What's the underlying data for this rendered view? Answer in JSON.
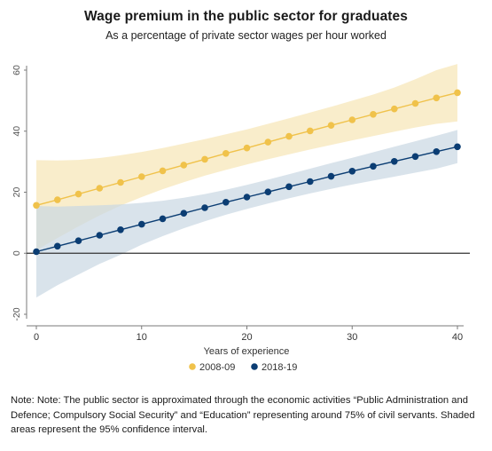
{
  "chart_data": {
    "type": "line",
    "title": "Wage premium in the public sector for graduates",
    "subtitle": "As a percentage of private sector wages per hour worked",
    "xlabel": "Years of experience",
    "ylabel": "",
    "xlim": [
      0,
      40
    ],
    "ylim": [
      -20,
      60
    ],
    "x_ticks": [
      0,
      10,
      20,
      30,
      40
    ],
    "y_ticks": [
      -20,
      0,
      20,
      40,
      60
    ],
    "grid": false,
    "legend_position": "bottom",
    "x": [
      0,
      2,
      4,
      6,
      8,
      10,
      12,
      14,
      16,
      18,
      20,
      22,
      24,
      26,
      28,
      30,
      32,
      34,
      36,
      38,
      40
    ],
    "series": [
      {
        "name": "2008-09",
        "color": "#f0c24b",
        "band_color": "#f7e6b5",
        "values": [
          15.7,
          17.5,
          19.4,
          21.3,
          23.2,
          25.1,
          27.0,
          28.9,
          30.8,
          32.7,
          34.5,
          36.4,
          38.3,
          40.1,
          41.9,
          43.7,
          45.5,
          47.3,
          49.1,
          50.9,
          52.6
        ],
        "lower": [
          1.0,
          5.0,
          8.8,
          12.4,
          15.6,
          18.4,
          21.0,
          23.3,
          25.4,
          27.3,
          29.1,
          30.8,
          32.4,
          34.0,
          35.5,
          37.0,
          38.4,
          39.8,
          41.2,
          42.4,
          43.2
        ],
        "upper": [
          30.5,
          30.4,
          30.6,
          31.2,
          32.1,
          33.2,
          34.5,
          35.9,
          37.4,
          39.0,
          40.6,
          42.4,
          44.2,
          46.1,
          48.0,
          50.0,
          52.0,
          54.3,
          57.0,
          60.0,
          62.0
        ]
      },
      {
        "name": "2018-19",
        "color": "#0b3d73",
        "band_color": "#c9d7e3",
        "values": [
          0.5,
          2.3,
          4.1,
          5.9,
          7.7,
          9.5,
          11.3,
          13.1,
          14.9,
          16.7,
          18.4,
          20.1,
          21.8,
          23.5,
          25.2,
          26.9,
          28.5,
          30.1,
          31.7,
          33.3,
          34.9
        ],
        "lower": [
          -14.5,
          -10.5,
          -7.0,
          -3.5,
          -0.5,
          2.8,
          5.6,
          8.2,
          10.5,
          12.6,
          14.5,
          16.3,
          18.0,
          19.6,
          21.1,
          22.5,
          23.8,
          25.1,
          26.4,
          27.7,
          29.5
        ],
        "upper": [
          15.5,
          15.3,
          15.5,
          15.7,
          16.0,
          16.5,
          17.2,
          18.2,
          19.4,
          20.8,
          22.4,
          24.1,
          25.9,
          27.7,
          29.5,
          31.3,
          33.1,
          34.9,
          36.7,
          38.5,
          40.4
        ]
      }
    ]
  },
  "note": "Note: Note: The public sector is approximated through the economic activities “Public Administration and Defence; Compulsory Social Security” and “Education” representing around 75% of civil servants. Shaded areas represent the 95% confidence interval."
}
